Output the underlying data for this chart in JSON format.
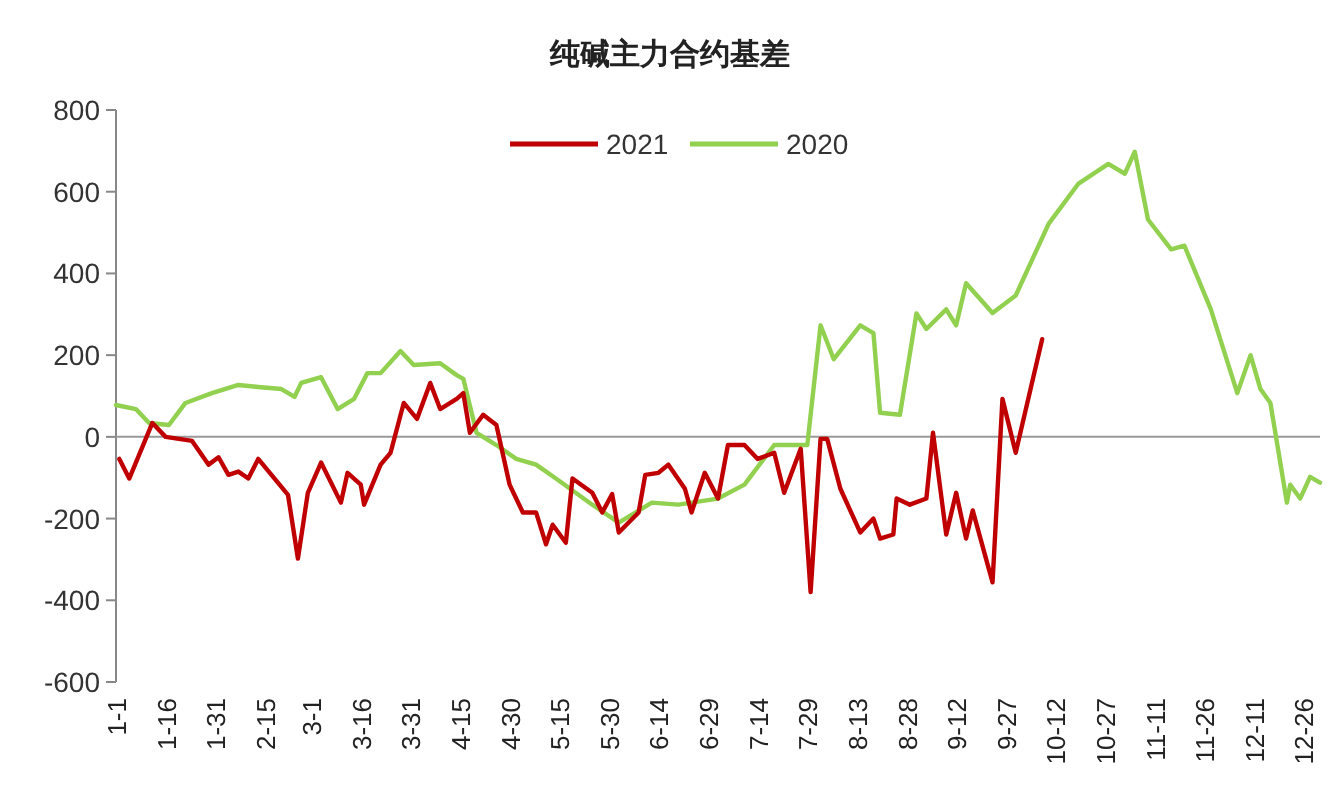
{
  "chart_data": {
    "type": "line",
    "title": "纯碱主力合约基差",
    "legend": "top",
    "grid": false,
    "ref_lines": [
      {
        "axis": "y",
        "value": 0,
        "color": "#999999"
      }
    ],
    "marker": "none",
    "xlim": [
      "--01-01",
      "--12-31"
    ],
    "ylim": [
      -600,
      800
    ],
    "yticks": [
      -600,
      -400,
      -200,
      0,
      200,
      400,
      600,
      800
    ],
    "xticks": [
      {
        "value": "--01-01",
        "label": "1-1"
      },
      {
        "value": "--01-16",
        "label": "1-16"
      },
      {
        "value": "--01-31",
        "label": "1-31"
      },
      {
        "value": "--02-15",
        "label": "2-15"
      },
      {
        "value": "--03-01",
        "label": "3-1"
      },
      {
        "value": "--03-16",
        "label": "3-16"
      },
      {
        "value": "--03-31",
        "label": "3-31"
      },
      {
        "value": "--04-15",
        "label": "4-15"
      },
      {
        "value": "--04-30",
        "label": "4-30"
      },
      {
        "value": "--05-15",
        "label": "5-15"
      },
      {
        "value": "--05-30",
        "label": "5-30"
      },
      {
        "value": "--06-14",
        "label": "6-14"
      },
      {
        "value": "--06-29",
        "label": "6-29"
      },
      {
        "value": "--07-14",
        "label": "7-14"
      },
      {
        "value": "--07-29",
        "label": "7-29"
      },
      {
        "value": "--08-13",
        "label": "8-13"
      },
      {
        "value": "--08-28",
        "label": "8-28"
      },
      {
        "value": "--09-12",
        "label": "9-12"
      },
      {
        "value": "--09-27",
        "label": "9-27"
      },
      {
        "value": "--10-12",
        "label": "10-12"
      },
      {
        "value": "--10-27",
        "label": "10-27"
      },
      {
        "value": "--11-11",
        "label": "11-11"
      },
      {
        "value": "--11-26",
        "label": "11-26"
      },
      {
        "value": "--12-11",
        "label": "12-11"
      },
      {
        "value": "--12-26",
        "label": "12-26"
      }
    ],
    "series": [
      {
        "name": "2021",
        "color": "#c00000",
        "x": [
          "--01-02",
          "--01-05",
          "--01-12",
          "--01-16",
          "--01-20",
          "--01-24",
          "--01-29",
          "--02-01",
          "--02-04",
          "--02-07",
          "--02-10",
          "--02-13",
          "--02-22",
          "--02-25",
          "--02-28",
          "--03-04",
          "--03-10",
          "--03-12",
          "--03-16",
          "--03-17",
          "--03-22",
          "--03-25",
          "--03-29",
          "--04-02",
          "--04-06",
          "--04-09",
          "--04-14",
          "--04-16",
          "--04-18",
          "--04-22",
          "--04-26",
          "--04-30",
          "--05-04",
          "--05-08",
          "--05-11",
          "--05-13",
          "--05-17",
          "--05-19",
          "--05-25",
          "--05-28",
          "--05-31",
          "--06-02",
          "--06-08",
          "--06-10",
          "--06-14",
          "--06-17",
          "--06-22",
          "--06-24",
          "--06-28",
          "--07-02",
          "--07-05",
          "--07-10",
          "--07-14",
          "--07-19",
          "--07-22",
          "--07-27",
          "--07-30",
          "--08-02",
          "--08-04",
          "--08-08",
          "--08-14",
          "--08-18",
          "--08-20",
          "--08-24",
          "--08-25",
          "--08-29",
          "--09-03",
          "--09-05",
          "--09-09",
          "--09-12",
          "--09-15",
          "--09-17",
          "--09-23",
          "--09-26",
          "--09-30",
          "--10-08"
        ],
        "values": [
          -54,
          -102,
          34,
          0,
          -5,
          -10,
          -68,
          -50,
          -93,
          -85,
          -102,
          -54,
          -142,
          -298,
          -137,
          -63,
          -161,
          -88,
          -117,
          -166,
          -68,
          -39,
          83,
          44,
          132,
          68,
          93,
          107,
          10,
          54,
          29,
          -117,
          -185,
          -185,
          -263,
          -215,
          -259,
          -102,
          -137,
          -185,
          -140,
          -234,
          -185,
          -93,
          -88,
          -68,
          -127,
          -185,
          -88,
          -151,
          -20,
          -20,
          -54,
          -39,
          -137,
          -29,
          -380,
          -5,
          -5,
          -127,
          -234,
          -200,
          -249,
          -239,
          -151,
          -166,
          -151,
          10,
          -239,
          -137,
          -249,
          -180,
          -356,
          93,
          -39,
          239
        ]
      },
      {
        "name": "2020",
        "color": "#92d050",
        "x": [
          "--01-01",
          "--01-07",
          "--01-11",
          "--01-17",
          "--01-22",
          "--01-30",
          "--02-07",
          "--02-13",
          "--02-20",
          "--02-24",
          "--02-26",
          "--03-04",
          "--03-09",
          "--03-14",
          "--03-18",
          "--03-22",
          "--03-28",
          "--04-01",
          "--04-09",
          "--04-14",
          "--04-16",
          "--04-20",
          "--04-26",
          "--05-02",
          "--05-08",
          "--05-14",
          "--05-25",
          "--06-02",
          "--06-12",
          "--06-20",
          "--07-02",
          "--07-10",
          "--07-19",
          "--07-29",
          "--08-02",
          "--08-06",
          "--08-14",
          "--08-18",
          "--08-20",
          "--08-26",
          "--08-31",
          "--09-03",
          "--09-09",
          "--09-12",
          "--09-15",
          "--09-23",
          "--09-30",
          "--10-10",
          "--10-19",
          "--10-28",
          "--11-02",
          "--11-05",
          "--11-09",
          "--11-16",
          "--11-20",
          "--11-28",
          "--12-06",
          "--12-10",
          "--12-13",
          "--12-16",
          "--12-21",
          "--12-22",
          "--12-25",
          "--12-28",
          "--12-31"
        ],
        "values": [
          78,
          68,
          34,
          29,
          83,
          107,
          127,
          122,
          117,
          98,
          132,
          146,
          68,
          93,
          156,
          156,
          210,
          176,
          180,
          151,
          142,
          10,
          -20,
          -54,
          -68,
          -102,
          -166,
          -210,
          -161,
          -166,
          -151,
          -117,
          -20,
          -20,
          273,
          190,
          273,
          254,
          59,
          54,
          302,
          264,
          312,
          273,
          376,
          303,
          346,
          522,
          620,
          668,
          644,
          698,
          532,
          459,
          468,
          312,
          107,
          200,
          117,
          83,
          -161,
          -117,
          -151,
          -98,
          -112
        ]
      }
    ]
  }
}
